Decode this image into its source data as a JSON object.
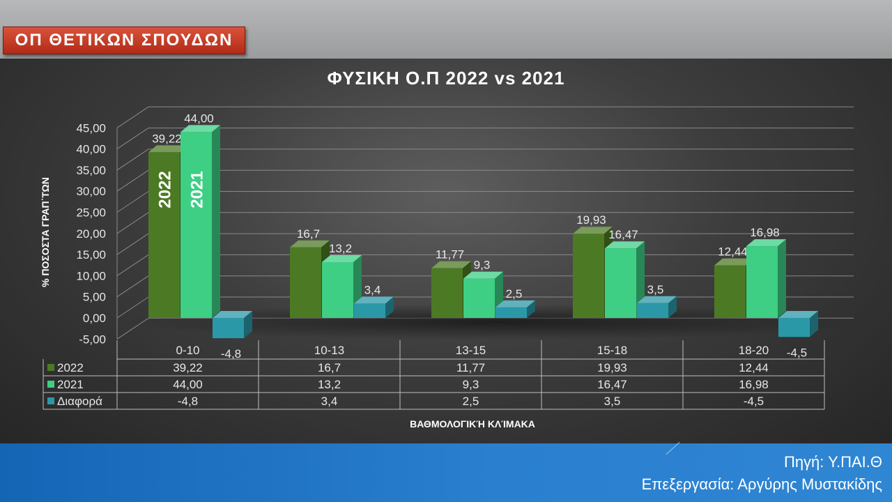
{
  "header": {
    "badge_text": "ΟΠ ΘΕΤΙΚΩΝ ΣΠΟΥΔΩΝ"
  },
  "footer": {
    "source": "Πηγή: Υ.ΠΑΙ.Θ",
    "processing": "Επεξεργασία: Αργύρης Μυστακίδης"
  },
  "chart_data": {
    "type": "bar",
    "title": "ΦΥΣΙΚΗ  Ο.Π 2022 vs 2021",
    "xlabel": "ΒΑΘΜΟΛΟΓΙΚΉ ΚΛΊΜΑΚΑ",
    "ylabel": "% ΠΟΣΟΣΤΑ ΓΡΑΠ΄ΤΩΝ",
    "categories": [
      "0-10",
      "10-13",
      "13-15",
      "15-18",
      "18-20"
    ],
    "series": [
      {
        "name": "2022",
        "values": [
          39.22,
          16.7,
          11.77,
          19.93,
          12.44
        ],
        "labels": [
          "39,22",
          "16,7",
          "11,77",
          "19,93",
          "12,44"
        ],
        "color": "#4c7a24"
      },
      {
        "name": "2021",
        "values": [
          44.0,
          13.2,
          9.3,
          16.47,
          16.98
        ],
        "labels": [
          "44,00",
          "13,2",
          "9,3",
          "16,47",
          "16,98"
        ],
        "color": "#3ecf85"
      },
      {
        "name": "Διαφορά",
        "values": [
          -4.8,
          3.4,
          2.5,
          3.5,
          -4.5
        ],
        "labels": [
          "-4,8",
          "3,4",
          "2,5",
          "3,5",
          "-4,5"
        ],
        "color": "#2b98a8"
      }
    ],
    "bar_annotations": [
      "2022",
      "2021"
    ],
    "ylim": [
      -5,
      45
    ],
    "yticks": [
      "-5,00",
      "0,00",
      "5,00",
      "10,00",
      "15,00",
      "20,00",
      "25,00",
      "30,00",
      "35,00",
      "40,00",
      "45,00"
    ],
    "grid": true,
    "legend": "data-table"
  }
}
